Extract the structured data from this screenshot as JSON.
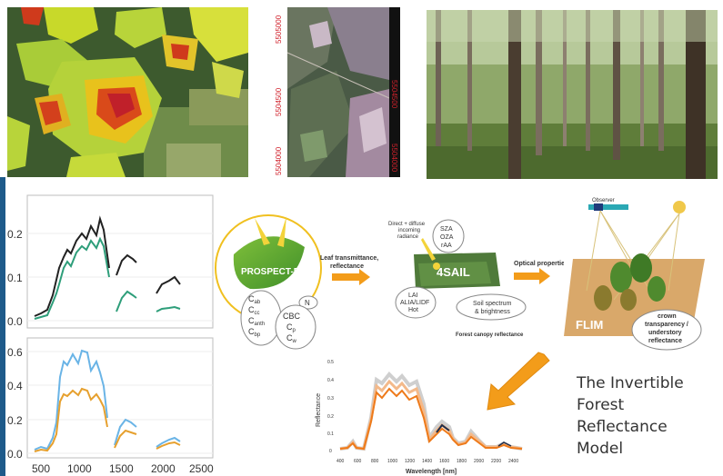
{
  "top_images": {
    "satellite_map": {
      "coordinate_labels_left": [
        "5504500",
        "5504000"
      ],
      "coordinate_labels_top": [
        "5505000"
      ],
      "coordinate_labels_right": [
        "5504500",
        "5504000"
      ]
    }
  },
  "plot_upper": {
    "y_ticks": [
      "0.2",
      "0.1",
      "0.0"
    ],
    "colors": {
      "dark": "#222222",
      "green": "#2e9e7a"
    }
  },
  "plot_lower": {
    "y_ticks": [
      "0.6",
      "0.4",
      "0.2",
      "0.0"
    ],
    "x_ticks": [
      "500",
      "1000",
      "1500",
      "2000",
      "2500"
    ],
    "colors": {
      "blue": "#6ab4e6",
      "orange": "#e6a02e"
    }
  },
  "diagram": {
    "prospect_label": "PROSPECT-PRO",
    "leaf_params": [
      "C",
      "C",
      "C",
      "C"
    ],
    "leaf_param_subs": [
      "ab",
      "cc",
      "anth",
      "bp"
    ],
    "n_label": "N",
    "cbc_label": "CBC",
    "cbc_params": [
      "C",
      "C"
    ],
    "cbc_param_subs": [
      "p",
      "w"
    ],
    "arrow1_label": [
      "Leaf transmittance,",
      "reflectance"
    ],
    "direct_label": [
      "Direct + diffuse",
      "incoming",
      "radiance"
    ],
    "angles": [
      "SZA",
      "OZA",
      "rAA"
    ],
    "sail_label": "4SAIL",
    "lai_params": [
      "LAI",
      "ALIA/LIDF",
      "Hot"
    ],
    "soil_label": [
      "Soil spectrum",
      "& brightness"
    ],
    "canopy_refl_label": "Forest canopy reflectance",
    "arrow2_label": "Optical properties",
    "observer_label": "Observer",
    "flim_label": "FLIM",
    "crown_label": [
      "crown",
      "transparency /",
      "understory",
      "reflectance"
    ]
  },
  "small_chart": {
    "ylabel": "Reflectance",
    "xlabel": "Wavelength [nm]",
    "y_ticks": [
      "0.5",
      "0.4",
      "0.3",
      "0.2",
      "0.1",
      "0"
    ],
    "x_ticks": [
      "400",
      "600",
      "800",
      "1000",
      "1200",
      "1400",
      "1600",
      "1800",
      "2000",
      "2200",
      "2400"
    ]
  },
  "title_lines": [
    "The Invertible",
    "Forest",
    "Reflectance",
    "Model"
  ]
}
